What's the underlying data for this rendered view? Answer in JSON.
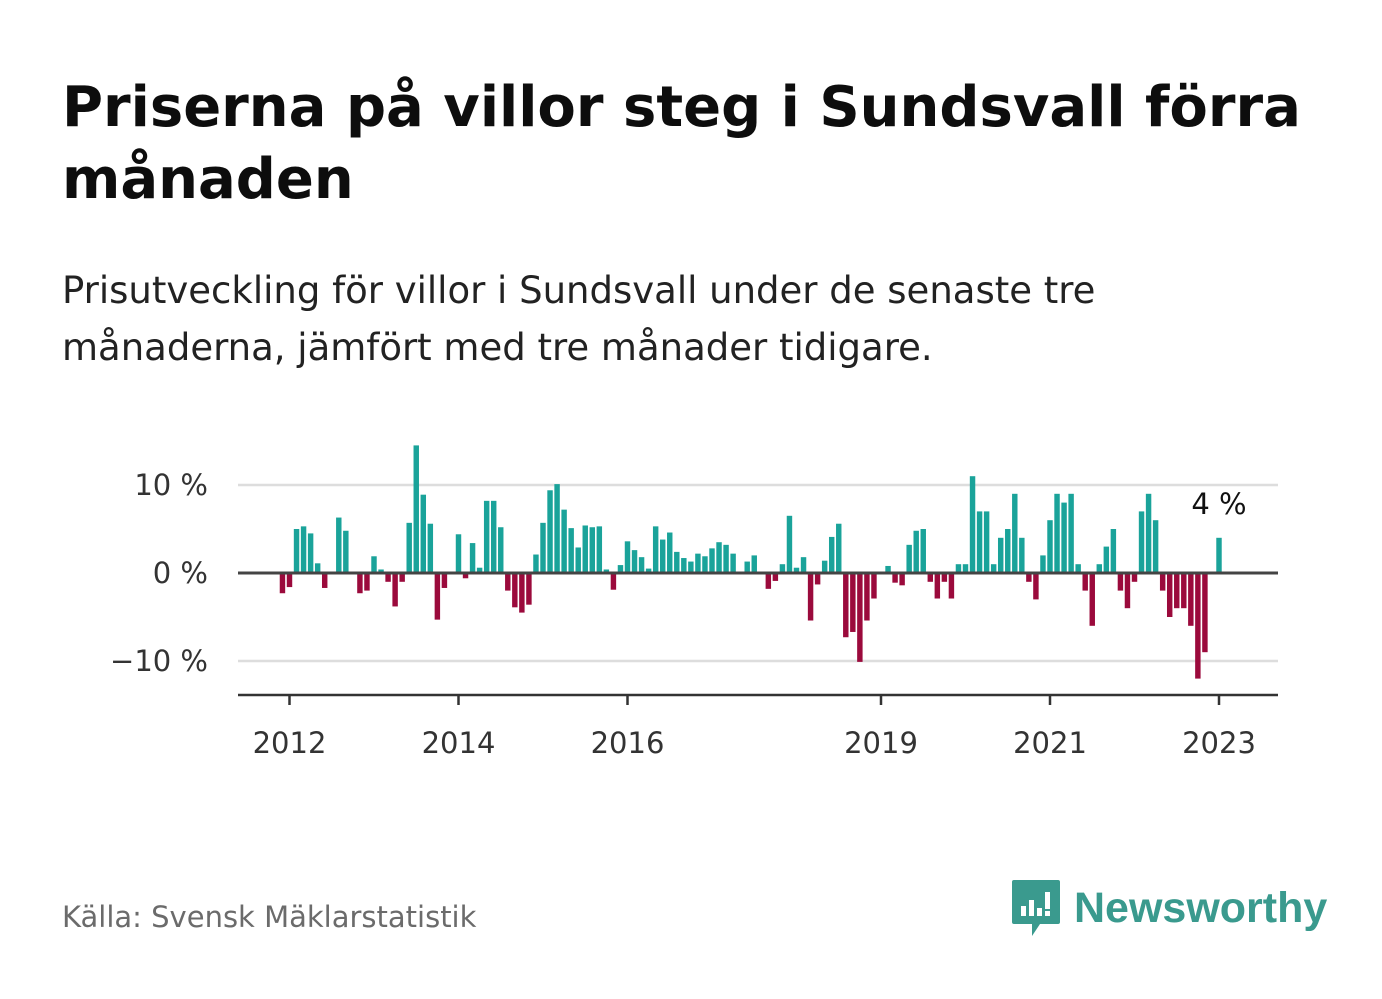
{
  "header": {
    "title": "Priserna på villor steg i Sundsvall förra månaden",
    "subtitle": "Prisutveckling för villor i Sundsvall under de senaste tre månaderna, jämfört med tre månader tidigare."
  },
  "footer": {
    "source": "Källa: Svensk Mäklarstatistik",
    "brand": "Newsworthy"
  },
  "colors": {
    "positive": "#1aa39a",
    "negative": "#9b0a3c",
    "brand": "#3a9a8e",
    "grid": "#dddddd"
  },
  "chart_data": {
    "type": "bar",
    "title": "Priserna på villor steg i Sundsvall förra månaden",
    "ylabel": "",
    "xlabel": "",
    "ylim": [
      -14,
      16
    ],
    "y_ticks": [
      {
        "value": 10,
        "label": "10 %"
      },
      {
        "value": 0,
        "label": "0 %"
      },
      {
        "value": -10,
        "label": "−10 %"
      }
    ],
    "x_ticks": [
      {
        "value": 2012.0,
        "label": "2012"
      },
      {
        "value": 2014.0,
        "label": "2014"
      },
      {
        "value": 2016.0,
        "label": "2016"
      },
      {
        "value": 2019.0,
        "label": "2019"
      },
      {
        "value": 2021.0,
        "label": "2021"
      },
      {
        "value": 2023.0,
        "label": "2023"
      }
    ],
    "grid": true,
    "start_month": "2011-12",
    "values": [
      -2.3,
      -1.6,
      5.0,
      5.3,
      4.5,
      1.1,
      -1.7,
      0,
      6.3,
      4.8,
      0,
      -2.3,
      -2.0,
      1.9,
      0.4,
      -1.0,
      -3.8,
      -1.0,
      5.7,
      14.5,
      8.9,
      5.6,
      -5.3,
      -1.7,
      0,
      4.4,
      -0.6,
      3.4,
      0.6,
      8.2,
      8.2,
      5.2,
      -2.0,
      -3.9,
      -4.5,
      -3.6,
      2.1,
      5.7,
      9.4,
      10.1,
      7.2,
      5.1,
      2.9,
      5.4,
      5.2,
      5.3,
      0.4,
      -1.9,
      0.9,
      3.6,
      2.6,
      1.8,
      0.5,
      5.3,
      3.8,
      4.6,
      2.4,
      1.7,
      1.3,
      2.2,
      1.9,
      2.8,
      3.5,
      3.2,
      2.2,
      0,
      1.3,
      2.0,
      0,
      -1.8,
      -0.9,
      1.0,
      6.5,
      0.6,
      1.8,
      -5.4,
      -1.3,
      1.4,
      4.1,
      5.6,
      -7.3,
      -6.7,
      -10.1,
      -5.4,
      -2.9,
      0,
      0.8,
      -1.1,
      -1.4,
      3.2,
      4.8,
      5.0,
      -1.0,
      -2.9,
      -1.0,
      -2.9,
      1.0,
      1.0,
      11.0,
      7.0,
      7.0,
      1.0,
      4.0,
      5.0,
      9.0,
      4.0,
      -1.0,
      -3.0,
      2.0,
      6.0,
      9.0,
      8.0,
      9.0,
      1.0,
      -2.0,
      -6.0,
      1.0,
      3.0,
      5.0,
      -2.0,
      -4.0,
      -1.0,
      7.0,
      9.0,
      6.0,
      -2.0,
      -5.0,
      -4.0,
      -4.0,
      -6.0,
      -12.0,
      -9.0,
      0,
      4.0
    ],
    "annotation": {
      "label": "4 %",
      "value": 4
    }
  }
}
